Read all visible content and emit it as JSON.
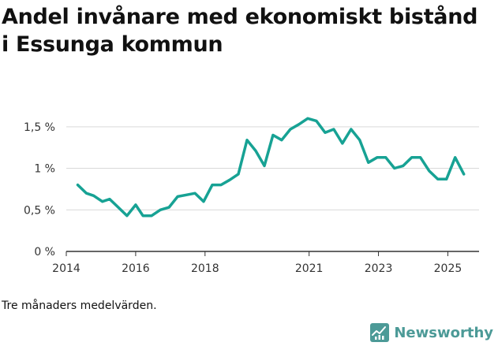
{
  "title": "Andel invånare med ekonomiskt bistånd i Essunga kommun",
  "footnote": "Tre månaders medelvärden.",
  "brand": "Newsworthy",
  "colors": {
    "line": "#17a294",
    "grid": "#d9d9d9",
    "axis": "#333333",
    "brand": "#4c9a97"
  },
  "chart_data": {
    "type": "line",
    "title": "Andel invånare med ekonomiskt bistånd i Essunga kommun",
    "xlabel": "",
    "ylabel": "",
    "y_ticks": [
      {
        "value": 0,
        "label": "0 %"
      },
      {
        "value": 0.5,
        "label": "0,5 %"
      },
      {
        "value": 1,
        "label": "1 %"
      },
      {
        "value": 1.5,
        "label": "1,5 %"
      }
    ],
    "x_ticks": [
      {
        "value": 2014.0,
        "label": "2014"
      },
      {
        "value": 2016.0,
        "label": "2016"
      },
      {
        "value": 2018.0,
        "label": "2018"
      },
      {
        "value": 2021.0,
        "label": "2021"
      },
      {
        "value": 2023.0,
        "label": "2023"
      },
      {
        "value": 2025.0,
        "label": "2025"
      }
    ],
    "xlim": [
      2014.0,
      2025.9
    ],
    "ylim": [
      0,
      1.65
    ],
    "grid": true,
    "series": [
      {
        "x": [
          2014.33,
          2014.58,
          2014.79,
          2015.04,
          2015.25,
          2015.5,
          2015.75,
          2016.0,
          2016.21,
          2016.46,
          2016.71,
          2016.96,
          2017.21,
          2017.46,
          2017.71,
          2017.96,
          2018.21,
          2018.46,
          2018.71,
          2018.96,
          2019.21,
          2019.46,
          2019.71,
          2019.96,
          2020.21,
          2020.46,
          2020.71,
          2020.96,
          2021.21,
          2021.46,
          2021.71,
          2021.96,
          2022.21,
          2022.46,
          2022.71,
          2022.96,
          2023.21,
          2023.46,
          2023.71,
          2023.96,
          2024.21,
          2024.46,
          2024.71,
          2024.96,
          2025.21,
          2025.46
        ],
        "values": [
          0.8,
          0.7,
          0.67,
          0.6,
          0.63,
          0.53,
          0.43,
          0.56,
          0.43,
          0.43,
          0.5,
          0.53,
          0.66,
          0.68,
          0.7,
          0.6,
          0.8,
          0.8,
          0.86,
          0.93,
          1.34,
          1.21,
          1.03,
          1.4,
          1.34,
          1.47,
          1.53,
          1.6,
          1.57,
          1.43,
          1.47,
          1.3,
          1.47,
          1.34,
          1.07,
          1.13,
          1.13,
          1.0,
          1.03,
          1.13,
          1.13,
          0.97,
          0.87,
          0.87,
          1.13,
          0.93
        ]
      }
    ]
  }
}
